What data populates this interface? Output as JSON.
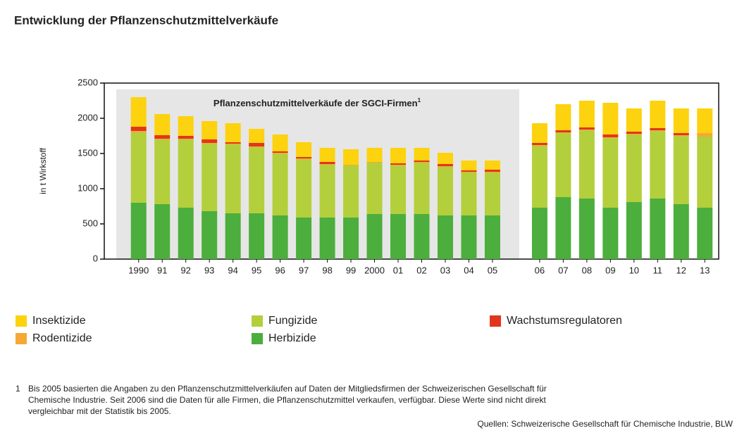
{
  "chart_data": {
    "type": "stacked_bar",
    "title": "Entwicklung der Pflanzenschutzmittelverkäufe",
    "y_label": "in t Wirkstoff",
    "annotation": "Pflanzenschutzmittelverkäufe der SGCI-Firmen",
    "annotation_ref": "1",
    "categories": [
      "1990",
      "91",
      "92",
      "93",
      "94",
      "95",
      "96",
      "97",
      "98",
      "99",
      "2000",
      "01",
      "02",
      "03",
      "04",
      "05",
      null,
      "06",
      "07",
      "08",
      "09",
      "10",
      "11",
      "12",
      "13"
    ],
    "series": [
      {
        "name": "Herbizide",
        "color": "#4cae3c",
        "values": [
          800,
          780,
          730,
          680,
          650,
          650,
          620,
          590,
          590,
          590,
          640,
          640,
          640,
          620,
          620,
          620,
          null,
          730,
          880,
          860,
          730,
          810,
          860,
          780,
          730
        ]
      },
      {
        "name": "Fungizide",
        "color": "#b3cf3c",
        "values": [
          1000,
          920,
          970,
          960,
          980,
          940,
          880,
          830,
          750,
          740,
          730,
          690,
          730,
          690,
          610,
          610,
          null,
          880,
          910,
          970,
          990,
          960,
          960,
          970,
          1010
        ]
      },
      {
        "name": "Rodentizide",
        "color": "#f7a833",
        "values": [
          20,
          10,
          10,
          10,
          10,
          10,
          10,
          10,
          10,
          10,
          10,
          10,
          10,
          10,
          10,
          10,
          null,
          10,
          10,
          10,
          10,
          10,
          10,
          10,
          50
        ]
      },
      {
        "name": "Wachstumsregulatoren",
        "color": "#e2361c",
        "values": [
          60,
          50,
          40,
          50,
          20,
          50,
          20,
          20,
          30,
          0,
          0,
          20,
          20,
          30,
          20,
          30,
          null,
          30,
          30,
          30,
          40,
          30,
          30,
          30,
          0
        ]
      },
      {
        "name": "Insektizide",
        "color": "#fdd20e",
        "values": [
          420,
          300,
          280,
          260,
          270,
          200,
          240,
          210,
          200,
          220,
          200,
          220,
          180,
          160,
          140,
          130,
          null,
          280,
          370,
          380,
          450,
          330,
          390,
          350,
          350
        ]
      }
    ],
    "ylim": [
      0,
      2500
    ],
    "yticks": [
      0,
      500,
      1000,
      1500,
      2000,
      2500
    ],
    "footnote_mark": "1",
    "footnote": [
      "Bis 2005 basierten die Angaben zu den Pflanzenschutzmittelverkäufen auf Daten der Mitgliedsfirmen der Schweizerischen Gesellschaft für",
      "Chemische Industrie. Seit 2006 sind die Daten für alle Firmen, die Pflanzenschutzmittel verkaufen, verfügbar. Diese Werte sind nicht direkt",
      "vergleichbar mit der Statistik bis 2005."
    ],
    "source": "Quellen: Schweizerische Gesellschaft für Chemische Industrie, BLW"
  }
}
